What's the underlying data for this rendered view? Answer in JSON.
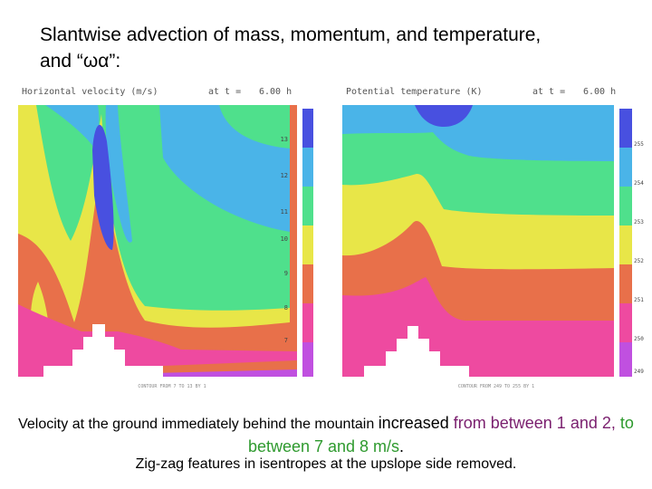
{
  "title_line1": "Slantwise advection of mass, momentum, and temperature,",
  "title_line2": "and “ωα”:",
  "left_panel": {
    "title": "Horizontal velocity (m/s)",
    "time_label": "at t =",
    "time_value": "6.00 h",
    "colorbar_labels": [
      "13",
      "12",
      "11",
      "10",
      "9",
      "8",
      "7"
    ],
    "footer": "CONTOUR FROM 7 TO 13 BY 1"
  },
  "right_panel": {
    "title": "Potential temperature (K)",
    "time_label": "at t =",
    "time_value": "6.00 h",
    "colorbar_labels": [
      "255",
      "254",
      "253",
      "252",
      "251",
      "250",
      "249"
    ],
    "footer": "CONTOUR FROM 249 TO 255 BY 1"
  },
  "colors": {
    "purple": "#c050e0",
    "magenta": "#ee4aa0",
    "orange": "#e8704a",
    "yellow": "#e8e648",
    "green": "#4fe08c",
    "cyan": "#4ab4e8",
    "blue": "#4850e0"
  },
  "caption": {
    "part1": "Velocity at the ground immediately behind the mountain ",
    "part2": "increased ",
    "part3": "from between 1 and 2,",
    "part4": " to between 7 and 8 m/s",
    "part5": ".",
    "line2": "Zig-zag features in isentropes at the upslope side removed."
  }
}
